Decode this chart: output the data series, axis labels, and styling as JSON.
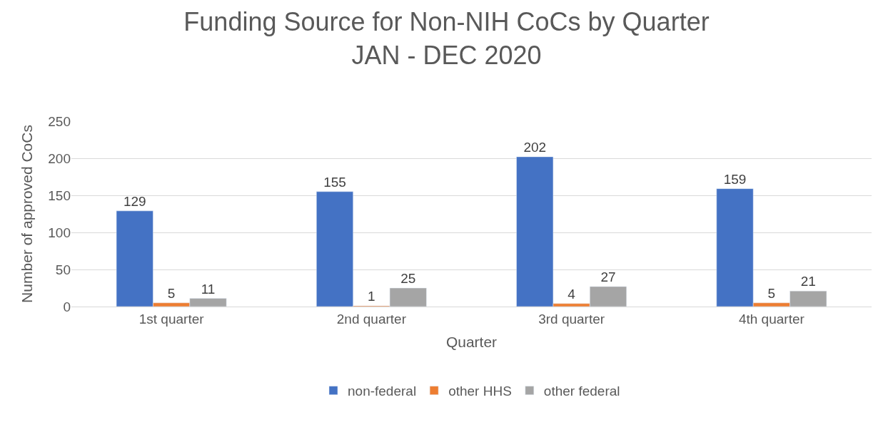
{
  "chart_data": {
    "type": "bar",
    "title": "Funding Source for Non-NIH CoCs by Quarter\nJAN - DEC 2020",
    "xlabel": "Quarter",
    "ylabel": "Number of approved CoCs",
    "categories": [
      "1st quarter",
      "2nd quarter",
      "3rd quarter",
      "4th quarter"
    ],
    "series": [
      {
        "name": "non-federal",
        "color": "#4472c4",
        "values": [
          129,
          155,
          202,
          159
        ]
      },
      {
        "name": "other HHS",
        "color": "#ed7d31",
        "values": [
          5,
          1,
          4,
          5
        ]
      },
      {
        "name": "other federal",
        "color": "#a5a5a5",
        "values": [
          11,
          25,
          27,
          21
        ]
      }
    ],
    "ylim": [
      0,
      250
    ],
    "yticks": [
      0,
      50,
      100,
      150,
      200,
      250
    ],
    "grid": "y",
    "legend": "bottom",
    "data_labels": true
  }
}
